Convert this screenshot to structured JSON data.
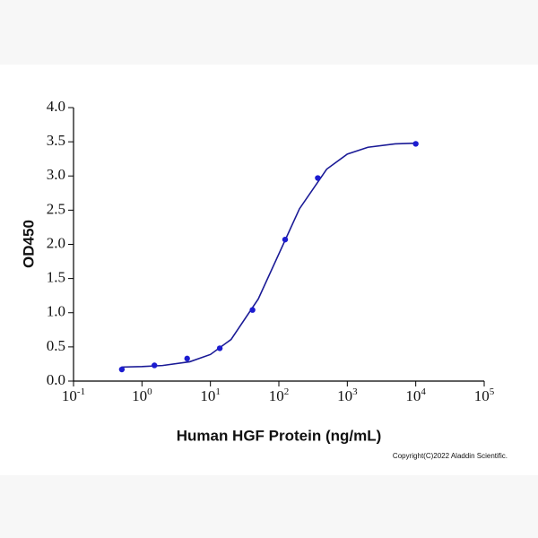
{
  "chart_data": {
    "type": "scatter",
    "x_label": "Human HGF Protein (ng/mL)",
    "y_label": "OD450",
    "annotation": "Copyright(C)2022 Aladdin Scientific.",
    "x_scale": "log",
    "xlim": [
      0.1,
      100000
    ],
    "xticks": [
      {
        "value": 0.1,
        "label": "10",
        "exponent": "-1"
      },
      {
        "value": 1,
        "label": "10",
        "exponent": "0"
      },
      {
        "value": 10,
        "label": "10",
        "exponent": "1"
      },
      {
        "value": 100,
        "label": "10",
        "exponent": "2"
      },
      {
        "value": 1000,
        "label": "10",
        "exponent": "3"
      },
      {
        "value": 10000,
        "label": "10",
        "exponent": "4"
      },
      {
        "value": 100000,
        "label": "10",
        "exponent": "5"
      }
    ],
    "ylim": [
      0,
      4
    ],
    "yticks": [
      {
        "value": 0,
        "label": "0.0"
      },
      0.5,
      {
        "value": 1,
        "label": "1.0"
      },
      1.5,
      {
        "value": 2,
        "label": "2.0"
      },
      2.5,
      {
        "value": 3,
        "label": "3.0"
      },
      3.5,
      {
        "value": 4,
        "label": "4.0"
      }
    ],
    "series": [
      {
        "type": "scatter",
        "color": "#1c1cd0",
        "x": [
          0.508,
          1.52,
          4.57,
          13.7,
          41.2,
          123.5,
          370.4,
          10000
        ],
        "values": [
          0.17,
          0.23,
          0.33,
          0.48,
          1.04,
          2.07,
          2.97,
          3.47
        ]
      },
      {
        "type": "line",
        "color": "#1a1a96",
        "x": [
          0.5,
          1,
          2,
          5,
          10,
          20,
          50,
          100,
          200,
          500,
          1000,
          2000,
          5000,
          10000
        ],
        "values": [
          0.205,
          0.212,
          0.228,
          0.283,
          0.389,
          0.608,
          1.2,
          1.86,
          2.52,
          3.1,
          3.32,
          3.42,
          3.47,
          3.48
        ]
      }
    ]
  }
}
